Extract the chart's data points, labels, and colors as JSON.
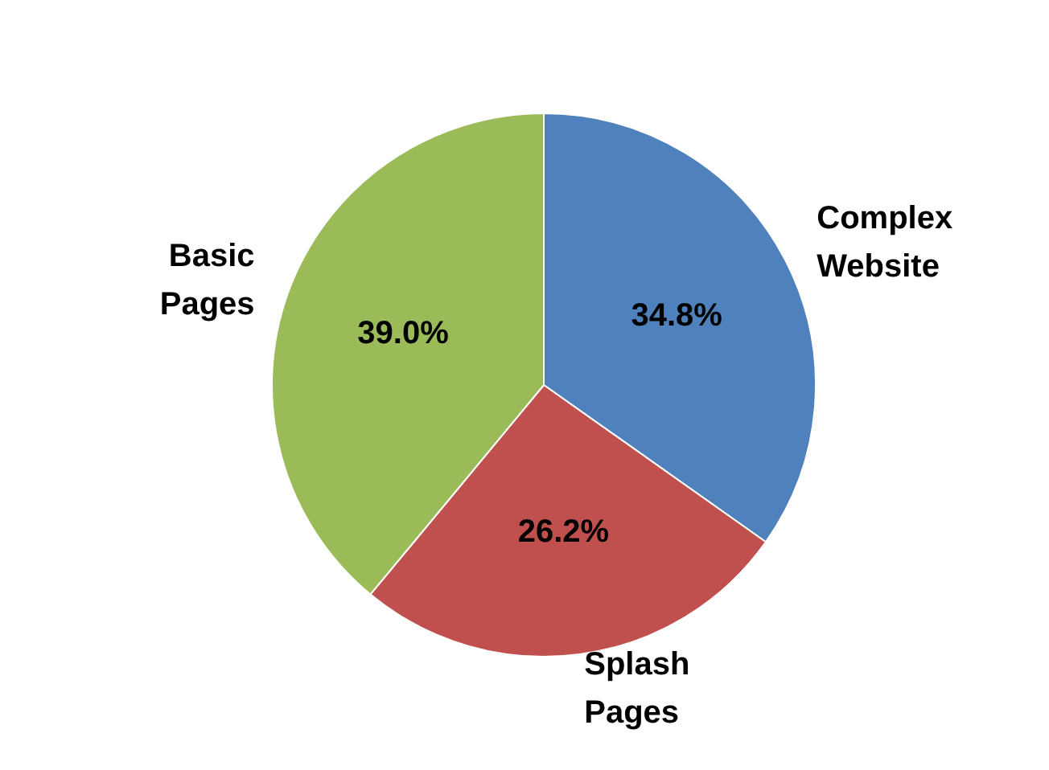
{
  "chart_data": {
    "type": "pie",
    "categories": [
      "Complex Website",
      "Splash Pages",
      "Basic Pages"
    ],
    "values": [
      34.8,
      26.2,
      39.0
    ],
    "colors": [
      "#4f81bd",
      "#c0504d",
      "#9bbb59"
    ],
    "value_labels": [
      "34.8%",
      "26.2%",
      "39.0%"
    ],
    "legend": false
  }
}
